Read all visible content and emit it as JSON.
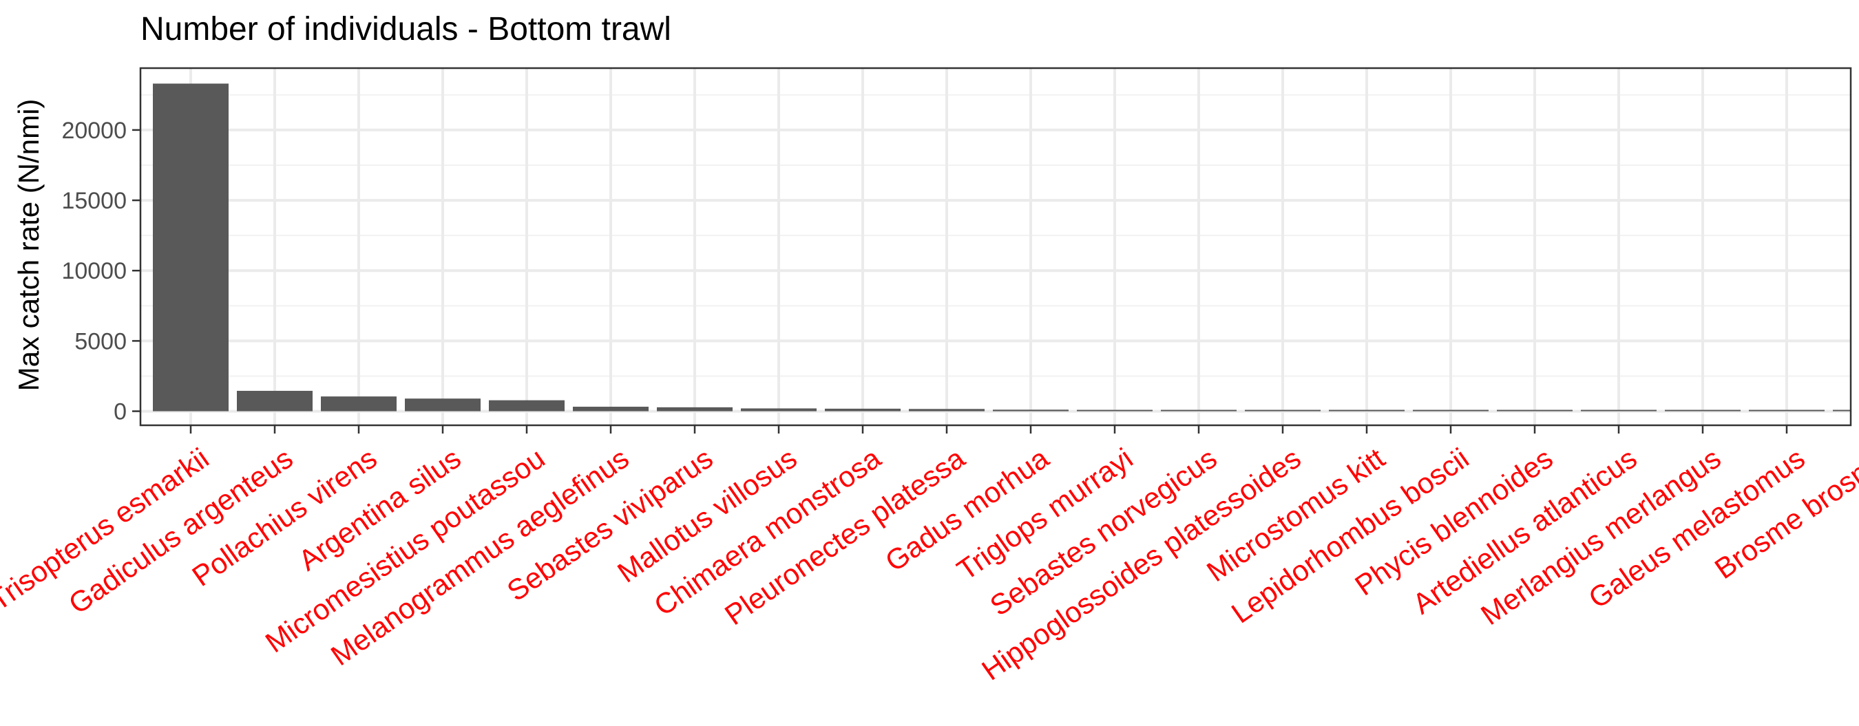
{
  "chart_data": {
    "type": "bar",
    "title": "Number of individuals - Bottom trawl",
    "xlabel": "",
    "ylabel": "Max catch rate (N/nmi)",
    "ylim": [
      -1000,
      24400
    ],
    "yticks": [
      0,
      5000,
      10000,
      15000,
      20000
    ],
    "grid": true,
    "categories": [
      "Trisopterus esmarkii",
      "Gadiculus argenteus",
      "Pollachius virens",
      "Argentina silus",
      "Micromesistius poutassou",
      "Melanogrammus aeglefinus",
      "Sebastes viviparus",
      "Mallotus villosus",
      "Chimaera monstrosa",
      "Pleuronectes platessa",
      "Gadus morhua",
      "Triglops murrayi",
      "Sebastes norvegicus",
      "Hippoglossoides platessoides",
      "Microstomus kitt",
      "Lepidorhombus boscii",
      "Phycis blennoides",
      "Artediellus atlanticus",
      "Merlangius merlangus",
      "Galeus melastomus",
      "Brosme brosme"
    ],
    "values": [
      23300,
      1450,
      1050,
      900,
      780,
      320,
      280,
      200,
      180,
      160,
      110,
      90,
      70,
      60,
      45,
      35,
      25,
      20,
      15,
      10,
      8
    ],
    "colors": {
      "bar": "#595959",
      "tick_label": "#FF0000",
      "panel_border": "#333333",
      "grid_major": "#EBEBEB",
      "grid_minor": "#F2F2F2",
      "axis_text": "#4D4D4D",
      "title": "#000000"
    }
  }
}
